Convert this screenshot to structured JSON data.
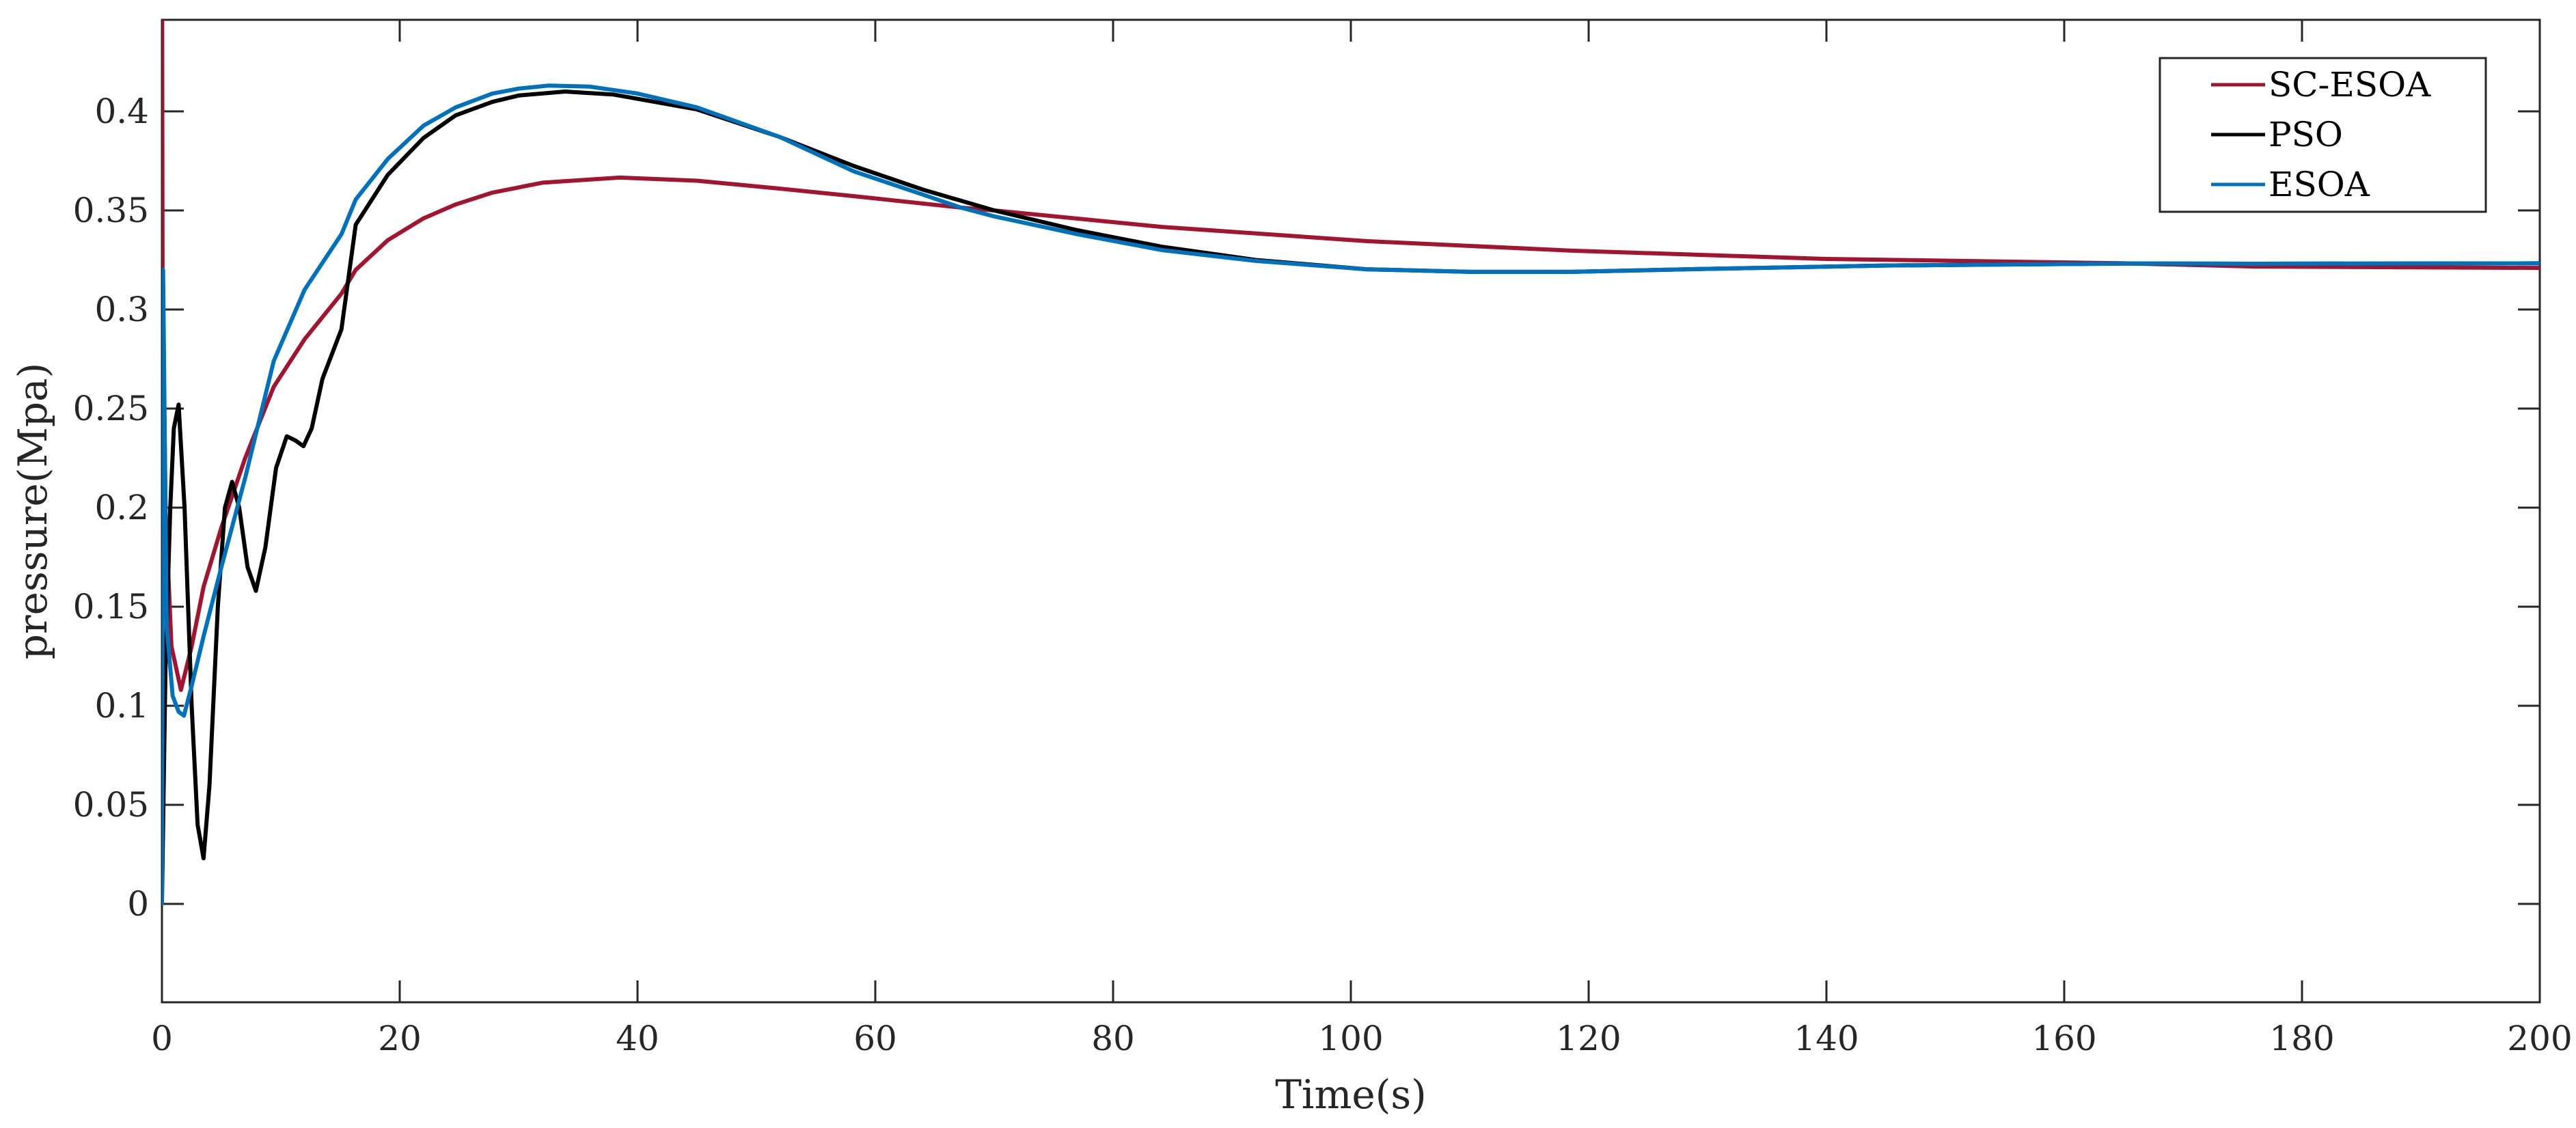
{
  "chart_data": {
    "type": "line",
    "title": "",
    "xlabel": "Time(s)",
    "ylabel": "pressure(Mpa)",
    "xlim": [
      0,
      200
    ],
    "ylim": [
      -0.05,
      0.447
    ],
    "xticks": [
      0,
      20,
      40,
      60,
      80,
      100,
      120,
      140,
      160,
      180,
      200
    ],
    "xtick_labels": [
      "0",
      "20",
      "40",
      "60",
      "80",
      "100",
      "120",
      "140",
      "160",
      "180",
      "200"
    ],
    "yticks": [
      0,
      0.05,
      0.1,
      0.15,
      0.2,
      0.25,
      0.3,
      0.35,
      0.4
    ],
    "ytick_labels": [
      "0",
      "0.05",
      "0.1",
      "0.15",
      "0.2",
      "0.25",
      "0.3",
      "0.35",
      "0.4"
    ],
    "grid": false,
    "legend_position": "upper right",
    "series": [
      {
        "name": "SC-ESOA",
        "color": "#A2142F",
        "x": [
          0,
          0.02,
          0.05,
          0.3,
          0.8,
          1.6,
          2.5,
          3.5,
          5,
          7,
          9.4,
          12,
          15.1,
          16.3,
          19,
          22,
          24.7,
          27.8,
          32,
          38.5,
          45,
          52,
          58.2,
          67.2,
          70,
          84.1,
          101.3,
          118.6,
          140,
          165,
          176,
          200
        ],
        "y": [
          0,
          0.46,
          0.32,
          0.2,
          0.13,
          0.108,
          0.13,
          0.16,
          0.19,
          0.225,
          0.261,
          0.285,
          0.308,
          0.32,
          0.335,
          0.346,
          0.353,
          0.359,
          0.364,
          0.3666,
          0.365,
          0.361,
          0.3572,
          0.3514,
          0.35,
          0.3417,
          0.3345,
          0.3297,
          0.3255,
          0.3233,
          0.3217,
          0.321
        ]
      },
      {
        "name": "PSO",
        "color": "#000000",
        "x": [
          0,
          0.3,
          0.7,
          1.0,
          1.4,
          1.9,
          2.5,
          3.0,
          3.5,
          4.0,
          4.7,
          5.3,
          5.9,
          6.5,
          7.2,
          7.9,
          8.7,
          9.6,
          10.5,
          11.2,
          11.9,
          12.6,
          13.5,
          15.1,
          16.3,
          19,
          22,
          24.7,
          27.8,
          30,
          33.9,
          38,
          45,
          52,
          58.2,
          64,
          70,
          77,
          84.1,
          92,
          101.3,
          110,
          118.6,
          130,
          145,
          165,
          176,
          200
        ],
        "y": [
          0,
          0.12,
          0.2,
          0.24,
          0.252,
          0.2,
          0.1,
          0.04,
          0.023,
          0.06,
          0.15,
          0.2,
          0.213,
          0.2,
          0.17,
          0.158,
          0.18,
          0.22,
          0.236,
          0.234,
          0.231,
          0.24,
          0.265,
          0.29,
          0.3428,
          0.368,
          0.3866,
          0.398,
          0.4048,
          0.408,
          0.41,
          0.4085,
          0.401,
          0.387,
          0.3724,
          0.3605,
          0.35,
          0.34,
          0.3317,
          0.325,
          0.3203,
          0.319,
          0.319,
          0.3205,
          0.3222,
          0.3232,
          0.3231,
          0.3233
        ]
      },
      {
        "name": "ESOA",
        "color": "#0072BD",
        "x": [
          0,
          0.05,
          0.1,
          0.4,
          0.9,
          1.4,
          1.85,
          2.5,
          3.5,
          5,
          7,
          9.4,
          12,
          15.1,
          16.3,
          19,
          22,
          24.7,
          27.8,
          30,
          32.5,
          36,
          40,
          45,
          52,
          58.2,
          64,
          67.2,
          70,
          77,
          84.1,
          92,
          101.3,
          110,
          118.6,
          130,
          145,
          165,
          176,
          200
        ],
        "y": [
          0,
          0.15,
          0.32,
          0.14,
          0.105,
          0.097,
          0.095,
          0.11,
          0.135,
          0.17,
          0.215,
          0.274,
          0.31,
          0.338,
          0.3555,
          0.376,
          0.3928,
          0.402,
          0.409,
          0.4115,
          0.413,
          0.4125,
          0.409,
          0.402,
          0.387,
          0.3697,
          0.358,
          0.3514,
          0.347,
          0.338,
          0.33,
          0.3245,
          0.3203,
          0.319,
          0.319,
          0.3205,
          0.3222,
          0.3232,
          0.3231,
          0.3233
        ]
      }
    ]
  },
  "legend": {
    "items": [
      {
        "label": "SC-ESOA",
        "color": "#A2142F"
      },
      {
        "label": "PSO",
        "color": "#000000"
      },
      {
        "label": "ESOA",
        "color": "#0072BD"
      }
    ]
  },
  "axes": {
    "xlabel": "Time(s)",
    "ylabel": "pressure(Mpa)"
  }
}
